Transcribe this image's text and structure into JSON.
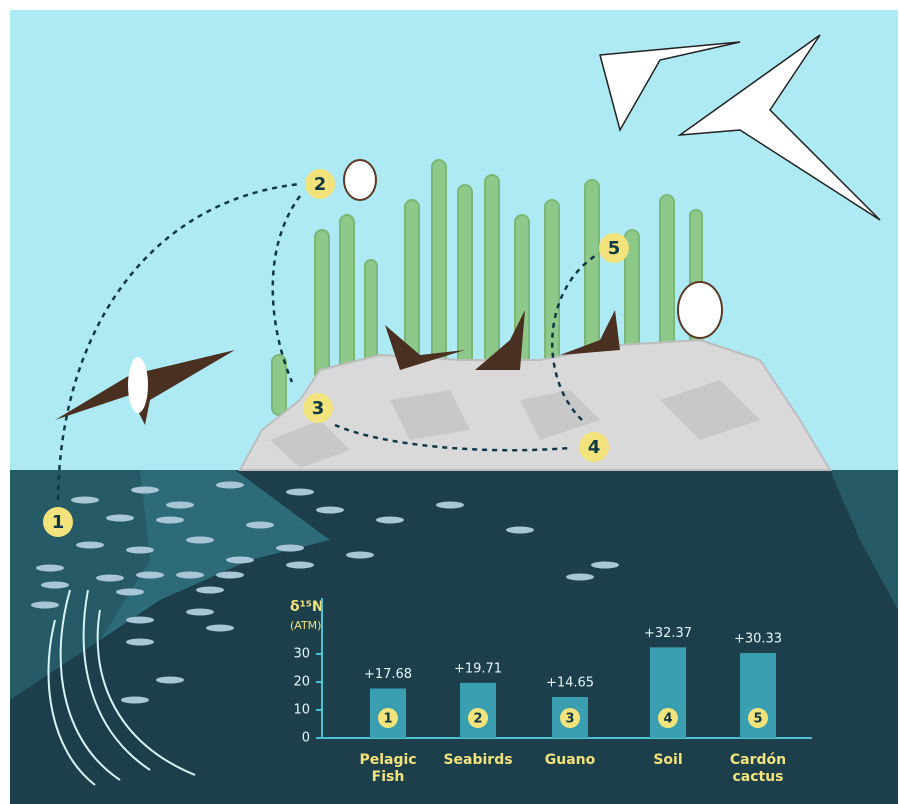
{
  "diagram": {
    "steps": [
      "1",
      "2",
      "3",
      "4",
      "5"
    ]
  },
  "chart_data": {
    "type": "bar",
    "y_label": "δ¹⁵N",
    "y_unit": "(ATM)",
    "categories": [
      "Pelagic Fish",
      "Seabirds",
      "Guano",
      "Soil",
      "Cardón cactus"
    ],
    "values": [
      17.68,
      19.71,
      14.65,
      32.37,
      30.33
    ],
    "value_labels": [
      "+17.68",
      "+19.71",
      "+14.65",
      "+32.37",
      "+30.33"
    ],
    "badges": [
      "1",
      "2",
      "3",
      "4",
      "5"
    ],
    "color": "#3a9fb0",
    "ylim": [
      0,
      50
    ],
    "yticks": [
      0,
      10,
      20,
      30
    ]
  }
}
